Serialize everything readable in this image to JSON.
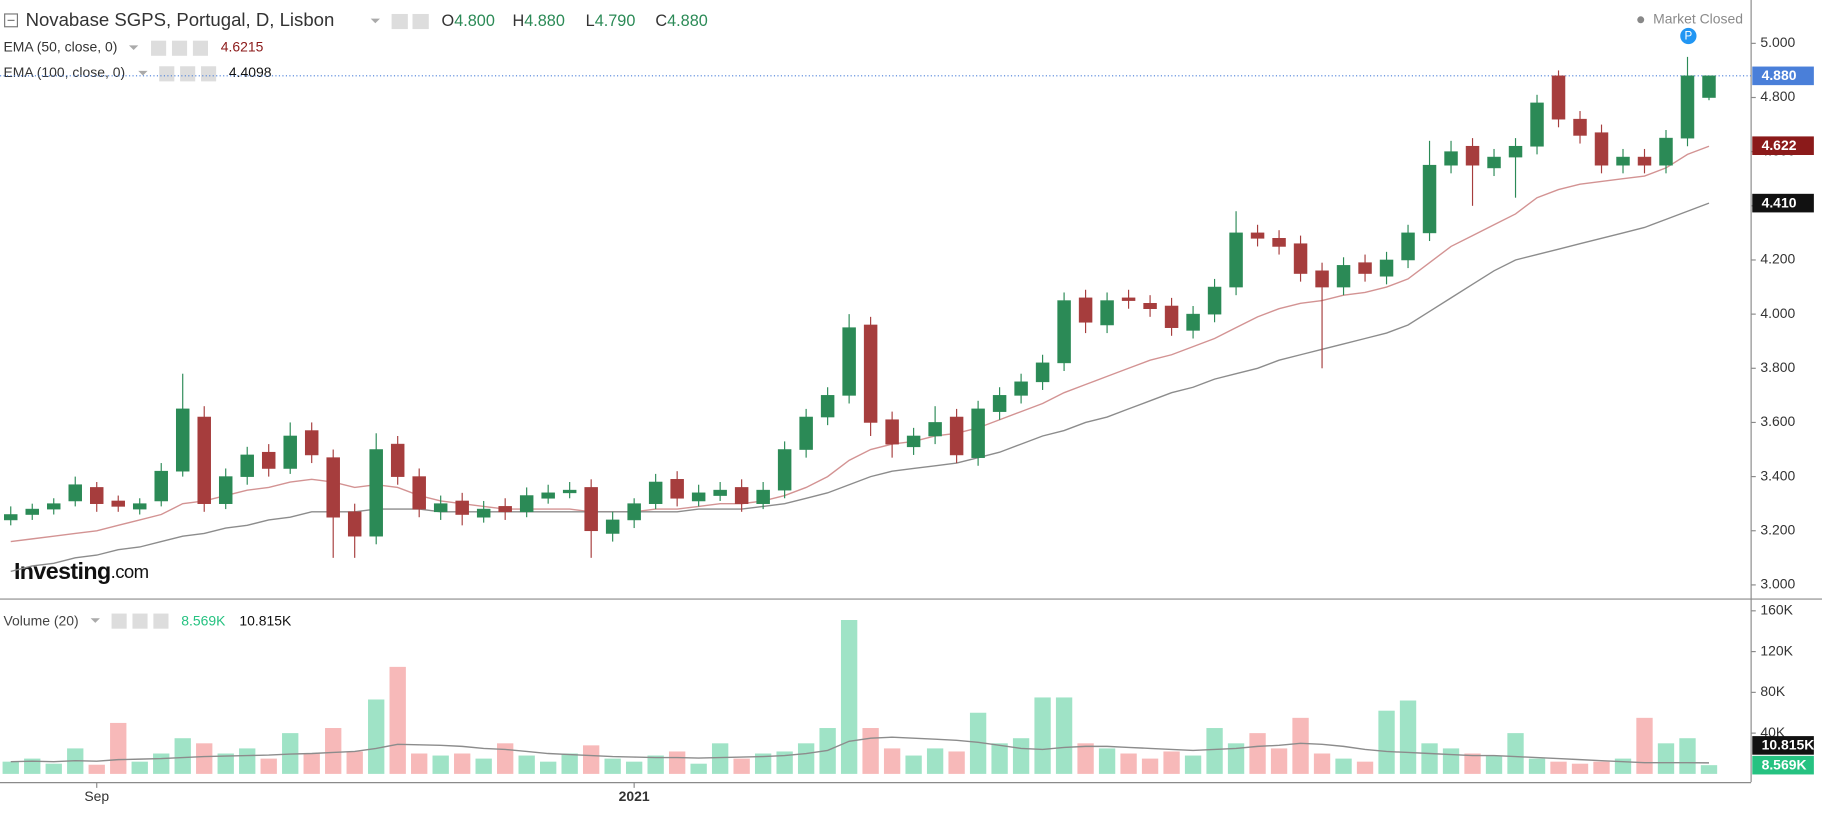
{
  "chart_data": {
    "type": "candlestick",
    "title": "Novabase SGPS, Portugal, D, Lisbon",
    "status": "Market Closed",
    "marker": "P",
    "logo": {
      "brand": "Investing",
      "suffix": ".com"
    },
    "ohlc": [
      {
        "key": "O",
        "value": 4.8,
        "label": "4.800"
      },
      {
        "key": "H",
        "value": 4.88,
        "label": "4.880"
      },
      {
        "key": "L",
        "value": 4.79,
        "label": "4.790"
      },
      {
        "key": "C",
        "value": 4.88,
        "label": "4.880"
      }
    ],
    "categories": [
      null,
      null,
      null,
      null,
      "Sep",
      null,
      null,
      null,
      null,
      null,
      null,
      null,
      null,
      null,
      null,
      null,
      null,
      null,
      null,
      null,
      null,
      null,
      null,
      null,
      null,
      null,
      null,
      null,
      null,
      "2021",
      null,
      null,
      null,
      null,
      null,
      null,
      null,
      null,
      null,
      null,
      null,
      null,
      null,
      null,
      null,
      null,
      null,
      null,
      null,
      null,
      null,
      null,
      null,
      null,
      null,
      null,
      null,
      null,
      null,
      null,
      null,
      null,
      null,
      null,
      null,
      null,
      null,
      null,
      null,
      null,
      null,
      null,
      null,
      null,
      null,
      null,
      null,
      null,
      null,
      null
    ],
    "open": [
      3.24,
      3.26,
      3.28,
      3.31,
      3.36,
      3.31,
      3.28,
      3.31,
      3.42,
      3.62,
      3.3,
      3.4,
      3.49,
      3.43,
      3.57,
      3.47,
      3.27,
      3.18,
      3.52,
      3.4,
      3.27,
      3.31,
      3.25,
      3.29,
      3.27,
      3.32,
      3.34,
      3.36,
      3.19,
      3.24,
      3.3,
      3.39,
      3.31,
      3.33,
      3.36,
      3.3,
      3.35,
      3.5,
      3.62,
      3.7,
      3.96,
      3.61,
      3.51,
      3.55,
      3.62,
      3.47,
      3.64,
      3.7,
      3.75,
      3.82,
      4.06,
      3.96,
      4.06,
      4.04,
      4.03,
      3.94,
      4.0,
      4.1,
      4.3,
      4.28,
      4.26,
      4.16,
      4.1,
      4.19,
      4.14,
      4.2,
      4.3,
      4.55,
      4.62,
      4.54,
      4.58,
      4.62,
      4.88,
      4.72,
      4.67,
      4.55,
      4.58,
      4.55,
      4.65,
      4.8
    ],
    "high": [
      3.29,
      3.3,
      3.32,
      3.4,
      3.38,
      3.33,
      3.32,
      3.45,
      3.78,
      3.66,
      3.43,
      3.51,
      3.52,
      3.6,
      3.6,
      3.5,
      3.3,
      3.56,
      3.55,
      3.43,
      3.33,
      3.34,
      3.31,
      3.32,
      3.36,
      3.37,
      3.38,
      3.39,
      3.27,
      3.32,
      3.41,
      3.42,
      3.37,
      3.38,
      3.39,
      3.38,
      3.53,
      3.65,
      3.73,
      4.0,
      3.99,
      3.64,
      3.58,
      3.66,
      3.65,
      3.68,
      3.73,
      3.78,
      3.85,
      4.08,
      4.09,
      4.08,
      4.09,
      4.07,
      4.06,
      4.03,
      4.13,
      4.38,
      4.33,
      4.31,
      4.29,
      4.19,
      4.21,
      4.22,
      4.23,
      4.33,
      4.64,
      4.64,
      4.65,
      4.61,
      4.65,
      4.81,
      4.9,
      4.75,
      4.7,
      4.61,
      4.61,
      4.68,
      4.95,
      4.88
    ],
    "low": [
      3.22,
      3.24,
      3.26,
      3.29,
      3.27,
      3.27,
      3.26,
      3.29,
      3.4,
      3.27,
      3.28,
      3.37,
      3.4,
      3.41,
      3.45,
      3.1,
      3.1,
      3.15,
      3.37,
      3.25,
      3.24,
      3.22,
      3.23,
      3.24,
      3.25,
      3.3,
      3.32,
      3.1,
      3.16,
      3.21,
      3.28,
      3.29,
      3.29,
      3.31,
      3.27,
      3.28,
      3.32,
      3.47,
      3.59,
      3.67,
      3.55,
      3.47,
      3.48,
      3.52,
      3.45,
      3.44,
      3.61,
      3.67,
      3.72,
      3.79,
      3.93,
      3.93,
      4.02,
      3.99,
      3.92,
      3.91,
      3.97,
      4.07,
      4.25,
      4.22,
      4.12,
      3.8,
      4.07,
      4.12,
      4.11,
      4.17,
      4.27,
      4.52,
      4.4,
      4.51,
      4.43,
      4.59,
      4.69,
      4.63,
      4.52,
      4.52,
      4.52,
      4.52,
      4.62,
      4.79
    ],
    "close": [
      3.26,
      3.28,
      3.3,
      3.37,
      3.3,
      3.29,
      3.3,
      3.42,
      3.65,
      3.3,
      3.4,
      3.48,
      3.43,
      3.55,
      3.48,
      3.25,
      3.18,
      3.5,
      3.4,
      3.28,
      3.3,
      3.26,
      3.28,
      3.27,
      3.33,
      3.34,
      3.35,
      3.2,
      3.24,
      3.3,
      3.38,
      3.32,
      3.34,
      3.35,
      3.3,
      3.35,
      3.5,
      3.62,
      3.7,
      3.95,
      3.6,
      3.52,
      3.55,
      3.6,
      3.48,
      3.65,
      3.7,
      3.75,
      3.82,
      4.05,
      3.97,
      4.05,
      4.05,
      4.02,
      3.95,
      4.0,
      4.1,
      4.3,
      4.28,
      4.25,
      4.15,
      4.1,
      4.18,
      4.15,
      4.2,
      4.3,
      4.55,
      4.6,
      4.55,
      4.58,
      4.62,
      4.78,
      4.72,
      4.66,
      4.55,
      4.58,
      4.55,
      4.65,
      4.88,
      4.88
    ],
    "up_color": "#2b8a56",
    "down_color": "#a63d3d",
    "ylim": [
      2.95,
      5.16
    ],
    "yticks": [
      {
        "value": 3,
        "label": "3.000"
      },
      {
        "value": 3.2,
        "label": "3.200"
      },
      {
        "value": 3.4,
        "label": "3.400"
      },
      {
        "value": 3.6,
        "label": "3.600"
      },
      {
        "value": 3.8,
        "label": "3.800"
      },
      {
        "value": 4,
        "label": "4.000"
      },
      {
        "value": 4.2,
        "label": "4.200"
      },
      {
        "value": 4.4,
        "label": "4.400"
      },
      {
        "value": 4.6,
        "label": "4.600"
      },
      {
        "value": 4.8,
        "label": "4.800"
      },
      {
        "value": 5,
        "label": "5.000"
      }
    ],
    "last_price": {
      "value": 4.88,
      "label": "4.880",
      "color": "#4a7fd9"
    },
    "series": [
      {
        "name": "EMA (50, close, 0)",
        "color": "#d39393",
        "last": 4.6215,
        "value_color": "#8b1a1a",
        "badge": {
          "value": 4.622,
          "label": "4.622"
        },
        "badge_color": "#8b1a1a",
        "values": [
          3.16,
          3.17,
          3.18,
          3.19,
          3.2,
          3.22,
          3.24,
          3.26,
          3.3,
          3.31,
          3.33,
          3.35,
          3.36,
          3.38,
          3.39,
          3.38,
          3.36,
          3.37,
          3.36,
          3.33,
          3.31,
          3.3,
          3.29,
          3.28,
          3.28,
          3.28,
          3.28,
          3.27,
          3.27,
          3.27,
          3.28,
          3.28,
          3.29,
          3.3,
          3.3,
          3.31,
          3.33,
          3.36,
          3.4,
          3.46,
          3.5,
          3.52,
          3.53,
          3.55,
          3.56,
          3.58,
          3.61,
          3.64,
          3.67,
          3.71,
          3.74,
          3.77,
          3.8,
          3.83,
          3.85,
          3.88,
          3.91,
          3.95,
          3.99,
          4.02,
          4.04,
          4.05,
          4.07,
          4.08,
          4.1,
          4.13,
          4.19,
          4.25,
          4.29,
          4.33,
          4.37,
          4.43,
          4.46,
          4.48,
          4.49,
          4.5,
          4.51,
          4.54,
          4.59,
          4.62
        ]
      },
      {
        "name": "EMA (100, close, 0)",
        "color": "#8c8c8c",
        "last": 4.4098,
        "value_color": "#111111",
        "badge": {
          "value": 4.41,
          "label": "4.410"
        },
        "badge_color": "#111111",
        "values": [
          3.05,
          3.07,
          3.08,
          3.1,
          3.11,
          3.13,
          3.14,
          3.16,
          3.18,
          3.19,
          3.21,
          3.22,
          3.24,
          3.25,
          3.27,
          3.27,
          3.27,
          3.28,
          3.28,
          3.28,
          3.27,
          3.27,
          3.27,
          3.27,
          3.27,
          3.27,
          3.27,
          3.27,
          3.27,
          3.27,
          3.27,
          3.27,
          3.28,
          3.28,
          3.28,
          3.29,
          3.3,
          3.32,
          3.34,
          3.37,
          3.4,
          3.42,
          3.43,
          3.44,
          3.45,
          3.47,
          3.49,
          3.52,
          3.55,
          3.57,
          3.6,
          3.62,
          3.65,
          3.68,
          3.71,
          3.73,
          3.76,
          3.78,
          3.8,
          3.83,
          3.85,
          3.87,
          3.89,
          3.91,
          3.93,
          3.96,
          4.01,
          4.06,
          4.11,
          4.16,
          4.2,
          4.22,
          4.24,
          4.26,
          4.28,
          4.3,
          4.32,
          4.35,
          4.38,
          4.41
        ]
      }
    ],
    "volume": {
      "title": "Volume (20)",
      "up_color": "#9fe3c6",
      "down_color": "#f7b9b9",
      "ylim": [
        -8000,
        171000
      ],
      "yticks": [
        {
          "value": 40000,
          "label": "40K"
        },
        {
          "value": 80000,
          "label": "80K"
        },
        {
          "value": 120000,
          "label": "120K"
        },
        {
          "value": 160000,
          "label": "160K"
        }
      ],
      "values": [
        12000,
        15000,
        10000,
        25000,
        9000,
        50000,
        12000,
        20000,
        35000,
        30000,
        20000,
        25000,
        15000,
        40000,
        20000,
        45000,
        22000,
        73000,
        105000,
        20000,
        18000,
        20000,
        15000,
        30000,
        18000,
        12000,
        20000,
        28000,
        15000,
        12000,
        18000,
        22000,
        10000,
        30000,
        15000,
        20000,
        22000,
        30000,
        45000,
        151000,
        45000,
        25000,
        18000,
        25000,
        22000,
        60000,
        30000,
        35000,
        75000,
        75000,
        30000,
        25000,
        20000,
        15000,
        22000,
        18000,
        45000,
        30000,
        40000,
        25000,
        55000,
        20000,
        15000,
        12000,
        62000,
        72000,
        30000,
        25000,
        20000,
        18000,
        40000,
        15000,
        12000,
        10000,
        12000,
        15000,
        55000,
        30000,
        35000,
        8569
      ],
      "last": {
        "value": 8569,
        "label": "8.569K",
        "color": "#26c281"
      },
      "ma": {
        "color": "#8c8c8c",
        "values": [
          12000,
          12500,
          12000,
          13000,
          12500,
          14000,
          14500,
          15000,
          16000,
          17000,
          17500,
          18000,
          18500,
          19500,
          20000,
          21000,
          22000,
          25000,
          29000,
          28500,
          28000,
          27000,
          25000,
          24000,
          22000,
          20000,
          19000,
          18000,
          17000,
          16500,
          16000,
          16000,
          15500,
          16000,
          16500,
          17000,
          18000,
          20000,
          23000,
          32000,
          35000,
          36000,
          35000,
          34000,
          33000,
          31000,
          28000,
          25000,
          24000,
          26000,
          27000,
          27000,
          26000,
          25000,
          24000,
          23000,
          24000,
          25000,
          27000,
          28000,
          30000,
          29000,
          27000,
          24000,
          22000,
          21000,
          20000,
          19000,
          18000,
          18000,
          17000,
          16000,
          15000,
          14000,
          13000,
          12000,
          11000,
          11000,
          11000,
          10815
        ],
        "last": {
          "value": 10815,
          "label": "10.815K",
          "color": "#111111"
        }
      }
    }
  }
}
